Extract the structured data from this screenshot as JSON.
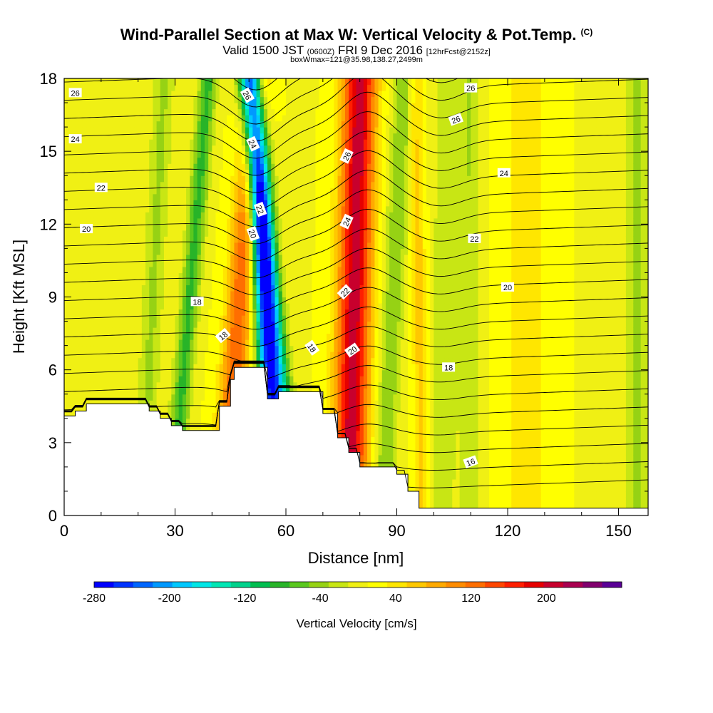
{
  "title": {
    "main": "Wind-Parallel Section at Max W: Vertical Velocity & Pot.Temp.",
    "copyright": "(C)",
    "valid_prefix": "Valid 1500 JST",
    "valid_utc": "(0600Z)",
    "valid_date": "FRI 9 Dec 2016",
    "forecast": "[12hrFcst@2152z]",
    "box": "boxWmax=121@35.98,138.27,2499m"
  },
  "chart_data": {
    "type": "heatmap",
    "xlabel": "Distance [nm]",
    "ylabel": "Height [Kft MSL]",
    "xlim": [
      0,
      158
    ],
    "ylim": [
      0,
      18
    ],
    "x_ticks": [
      0,
      30,
      60,
      90,
      120,
      150
    ],
    "y_ticks": [
      0,
      3,
      6,
      9,
      12,
      15,
      18
    ],
    "colorbar": {
      "label": "Vertical Velocity [cm/s]",
      "range": [
        -280,
        280
      ],
      "tick_values": [
        -280,
        -200,
        -120,
        -40,
        40,
        120,
        200
      ],
      "colors": [
        "#0000ff",
        "#0033ff",
        "#0066ff",
        "#0099ff",
        "#00c8ff",
        "#00e6e6",
        "#00e6b4",
        "#00d28c",
        "#00be50",
        "#28b428",
        "#5ac81e",
        "#96d214",
        "#c8e614",
        "#f0f014",
        "#ffff00",
        "#ffe600",
        "#ffc800",
        "#ffaa00",
        "#ff8c00",
        "#ff6e00",
        "#ff4600",
        "#ff1e00",
        "#e60000",
        "#c8002d",
        "#aa0050",
        "#82006e",
        "#5a0096"
      ]
    },
    "velocity_features": [
      {
        "x": 5,
        "top_shift": 0,
        "width": 2.5,
        "value": -20
      },
      {
        "x": 21,
        "top_shift": 6,
        "width": 3.0,
        "value": -45
      },
      {
        "x": 29,
        "top_shift": 10,
        "width": 2.5,
        "value": -90
      },
      {
        "x": 43,
        "top_shift": 9,
        "width": 3.5,
        "value": 120
      },
      {
        "x": 50,
        "top_shift": 3,
        "width": 3.0,
        "value": 20
      },
      {
        "x": 57,
        "top_shift": -6,
        "width": 3.0,
        "value": -220
      },
      {
        "x": 62,
        "top_shift": -12,
        "width": 3.0,
        "value": -140
      },
      {
        "x": 77,
        "top_shift": 3,
        "width": 4.5,
        "value": 200
      },
      {
        "x": 86,
        "top_shift": 6,
        "width": 3.0,
        "value": -60
      },
      {
        "x": 97,
        "top_shift": -2,
        "width": 2.0,
        "value": 50
      },
      {
        "x": 102,
        "top_shift": 2,
        "width": 3.5,
        "value": -40
      },
      {
        "x": 110,
        "top_shift": 0,
        "width": 3.0,
        "value": -40
      },
      {
        "x": 125,
        "top_shift": 0,
        "width": 6.0,
        "value": 35
      },
      {
        "x": 155,
        "top_shift": 0,
        "width": 3.0,
        "value": -50
      }
    ],
    "terrain": [
      [
        0,
        4.1
      ],
      [
        3,
        4.1
      ],
      [
        3,
        4.3
      ],
      [
        6,
        4.3
      ],
      [
        6,
        4.6
      ],
      [
        23,
        4.6
      ],
      [
        23,
        4.3
      ],
      [
        26,
        4.3
      ],
      [
        26,
        4.0
      ],
      [
        29,
        4.0
      ],
      [
        29,
        3.7
      ],
      [
        32,
        3.7
      ],
      [
        32,
        3.5
      ],
      [
        42,
        3.5
      ],
      [
        42,
        4.5
      ],
      [
        45,
        4.5
      ],
      [
        45,
        5.6
      ],
      [
        46,
        5.6
      ],
      [
        46,
        6.1
      ],
      [
        55,
        6.1
      ],
      [
        55,
        4.8
      ],
      [
        58,
        4.8
      ],
      [
        58,
        5.1
      ],
      [
        70,
        5.1
      ],
      [
        70,
        4.2
      ],
      [
        74,
        4.2
      ],
      [
        74,
        3.2
      ],
      [
        77,
        3.2
      ],
      [
        77,
        2.6
      ],
      [
        80,
        2.6
      ],
      [
        80,
        2.0
      ],
      [
        90,
        2.0
      ],
      [
        90,
        1.7
      ],
      [
        93,
        1.7
      ],
      [
        93,
        1.0
      ],
      [
        96,
        1.0
      ],
      [
        96,
        0.3
      ],
      [
        158,
        0.3
      ]
    ],
    "contour_labels": [
      {
        "x": 3,
        "y": 17.4,
        "text": "26",
        "angle": 0
      },
      {
        "x": 3,
        "y": 15.5,
        "text": "24",
        "angle": 0
      },
      {
        "x": 10,
        "y": 13.5,
        "text": "22",
        "angle": 0
      },
      {
        "x": 6,
        "y": 11.8,
        "text": "20",
        "angle": 0
      },
      {
        "x": 36,
        "y": 8.8,
        "text": "18",
        "angle": 0
      },
      {
        "x": 43,
        "y": 7.4,
        "text": "18",
        "angle": -40
      },
      {
        "x": 49.5,
        "y": 17.3,
        "text": "26",
        "angle": 60
      },
      {
        "x": 51,
        "y": 15.3,
        "text": "24",
        "angle": 65
      },
      {
        "x": 53,
        "y": 12.6,
        "text": "22",
        "angle": 70
      },
      {
        "x": 51,
        "y": 11.6,
        "text": "20",
        "angle": 70
      },
      {
        "x": 67,
        "y": 6.9,
        "text": "18",
        "angle": 55
      },
      {
        "x": 76.5,
        "y": 14.8,
        "text": "26",
        "angle": -65
      },
      {
        "x": 76.5,
        "y": 12.1,
        "text": "24",
        "angle": -65
      },
      {
        "x": 76,
        "y": 9.2,
        "text": "22",
        "angle": -45
      },
      {
        "x": 78,
        "y": 6.8,
        "text": "20",
        "angle": -35
      },
      {
        "x": 110,
        "y": 17.6,
        "text": "26",
        "angle": 0
      },
      {
        "x": 106,
        "y": 16.3,
        "text": "26",
        "angle": -20
      },
      {
        "x": 119,
        "y": 14.1,
        "text": "24",
        "angle": 0
      },
      {
        "x": 111,
        "y": 11.4,
        "text": "22",
        "angle": 0
      },
      {
        "x": 120,
        "y": 9.4,
        "text": "20",
        "angle": 0
      },
      {
        "x": 104,
        "y": 6.1,
        "text": "18",
        "angle": 0
      },
      {
        "x": 110,
        "y": 2.2,
        "text": "16",
        "angle": -20
      }
    ]
  }
}
